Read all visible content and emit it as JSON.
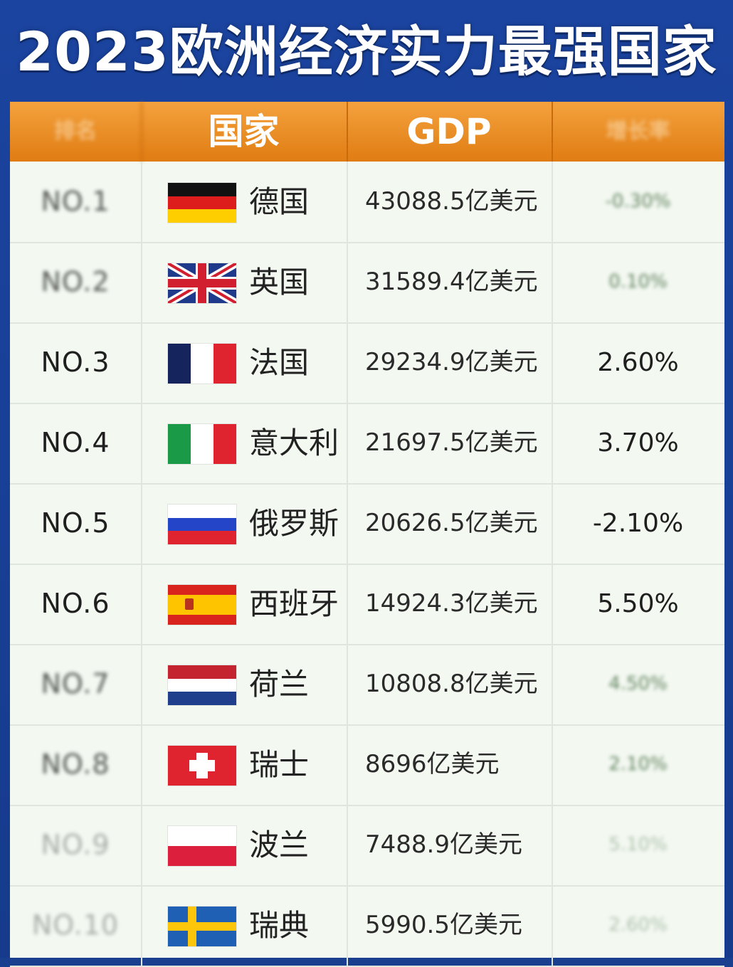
{
  "title": "2023欧洲经济实力最强国家",
  "chart_data": {
    "type": "table",
    "columns": [
      "排名",
      "国家",
      "GDP",
      "增长率"
    ],
    "rows": [
      {
        "rank": "NO.1",
        "country": "德国",
        "gdp": "43088.5亿美元",
        "growth": "-0.30%",
        "flag": "germany",
        "legible": false
      },
      {
        "rank": "NO.2",
        "country": "英国",
        "gdp": "31589.4亿美元",
        "growth": "0.10%",
        "flag": "uk",
        "legible": false
      },
      {
        "rank": "NO.3",
        "country": "法国",
        "gdp": "29234.9亿美元",
        "growth": "2.60%",
        "flag": "france",
        "legible": true
      },
      {
        "rank": "NO.4",
        "country": "意大利",
        "gdp": "21697.5亿美元",
        "growth": "3.70%",
        "flag": "italy",
        "legible": true
      },
      {
        "rank": "NO.5",
        "country": "俄罗斯",
        "gdp": "20626.5亿美元",
        "growth": "-2.10%",
        "flag": "russia",
        "legible": true
      },
      {
        "rank": "NO.6",
        "country": "西班牙",
        "gdp": "14924.3亿美元",
        "growth": "5.50%",
        "flag": "spain",
        "legible": true
      },
      {
        "rank": "NO.7",
        "country": "荷兰",
        "gdp": "10808.8亿美元",
        "growth": "4.50%",
        "flag": "netherlands",
        "legible": false
      },
      {
        "rank": "NO.8",
        "country": "瑞士",
        "gdp": "8696亿美元",
        "growth": "2.10%",
        "flag": "switzerland",
        "legible": false
      },
      {
        "rank": "NO.9",
        "country": "波兰",
        "gdp": "7488.9亿美元",
        "growth": "5.10%",
        "flag": "poland",
        "legible": false
      },
      {
        "rank": "NO.10",
        "country": "瑞典",
        "gdp": "5990.5亿美元",
        "growth": "2.60%",
        "flag": "sweden",
        "legible": false
      }
    ]
  },
  "colors": {
    "background": "#1b44a0",
    "header": "#e88a20",
    "row_bg": "#f3f8f1"
  }
}
